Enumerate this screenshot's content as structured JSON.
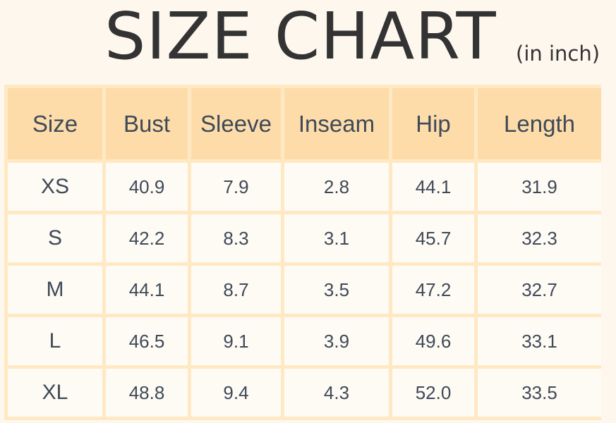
{
  "title": "SIZE CHART",
  "unit": "(in inch)",
  "colors": {
    "background": "#fdf7ee",
    "header_fill": "#fddcaa",
    "grid_line": "#ffe9c4",
    "cell_fill": "#fefaf4",
    "text": "#3e4a57"
  },
  "chart_data": {
    "type": "table",
    "title": "SIZE CHART",
    "subtitle": "(in inch)",
    "columns": [
      "Size",
      "Bust",
      "Sleeve",
      "Inseam",
      "Hip",
      "Length"
    ],
    "rows": [
      [
        "XS",
        "40.9",
        "7.9",
        "2.8",
        "44.1",
        "31.9"
      ],
      [
        "S",
        "42.2",
        "8.3",
        "3.1",
        "45.7",
        "32.3"
      ],
      [
        "M",
        "44.1",
        "8.7",
        "3.5",
        "47.2",
        "32.7"
      ],
      [
        "L",
        "46.5",
        "9.1",
        "3.9",
        "49.6",
        "33.1"
      ],
      [
        "XL",
        "48.8",
        "9.4",
        "4.3",
        "52.0",
        "33.5"
      ]
    ]
  }
}
